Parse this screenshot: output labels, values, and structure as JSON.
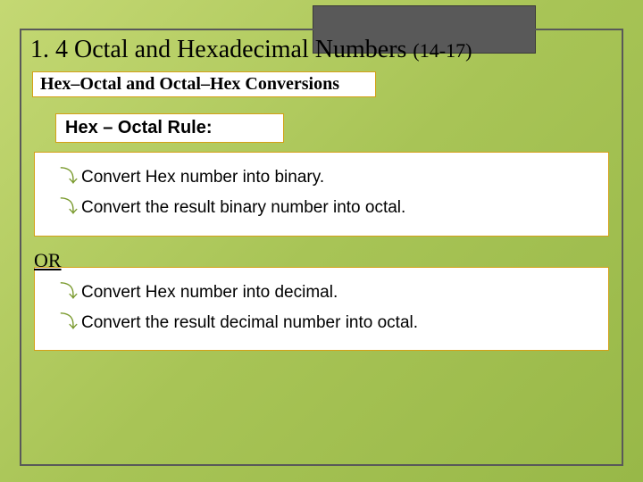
{
  "colors": {
    "bg_gradient_start": "#c4d873",
    "bg_gradient_mid": "#a8c456",
    "bg_gradient_end": "#98b848",
    "top_box_fill": "#595959",
    "frame_border": "#595959",
    "card_border": "#d4a017",
    "card_bg": "#ffffff",
    "bullet_color": "#7a9a2e"
  },
  "title": {
    "text": "1. 4 Octal and Hexadecimal Numbers ",
    "suffix": "(14-17)",
    "fontsize": 28
  },
  "subtitle": {
    "text": "Hex–Octal and Octal–Hex Conversions",
    "fontsize": 20
  },
  "rule": {
    "text": "Hex – Octal Rule:",
    "fontsize": 20
  },
  "steps_a": [
    "Convert Hex number into binary.",
    "Convert the result binary number into octal."
  ],
  "or_label": "OR",
  "steps_b": [
    "Convert Hex number into decimal.",
    "Convert the result decimal number into octal."
  ],
  "bullet_glyph": "⤵"
}
